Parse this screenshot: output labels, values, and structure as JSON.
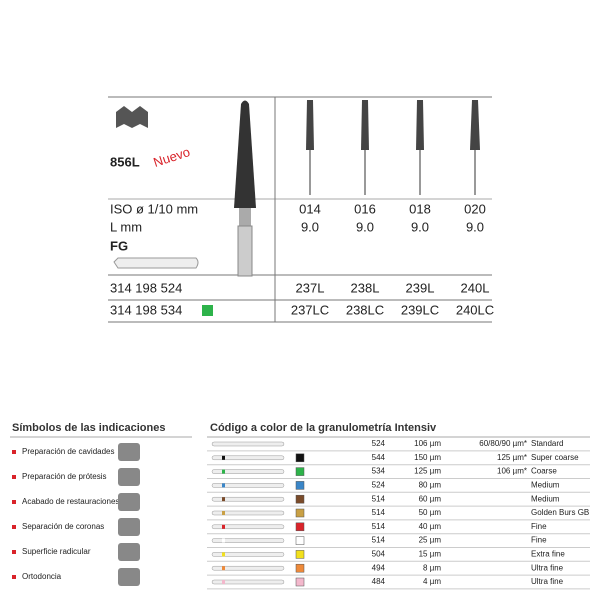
{
  "product": {
    "model": "856L",
    "badge": "Nuevo",
    "iso_label": "ISO ø 1/10 mm",
    "iso": [
      "014",
      "016",
      "018",
      "020"
    ],
    "length_label": "L mm",
    "length": [
      "9.0",
      "9.0",
      "9.0",
      "9.0"
    ],
    "shank": "FG",
    "articles": [
      {
        "number": "314 198 524",
        "refs": [
          "237L",
          "238L",
          "239L",
          "240L"
        ]
      },
      {
        "number": "314 198 534",
        "color": "#2db34a",
        "refs": [
          "237LC",
          "238LC",
          "239LC",
          "240LC"
        ]
      }
    ]
  },
  "indications": {
    "title": "Símbolos de las indicaciones",
    "items": [
      "Preparación de cavidades",
      "Preparación de prótesis",
      "Acabado de restauraciones",
      "Separación de coronas",
      "Superficie radicular",
      "Ortodoncia"
    ]
  },
  "grit_table": {
    "title": "Código a color de la granulometría Intensiv",
    "rows": [
      {
        "code": "524",
        "size": "106 µm",
        "grit": "60/80/90 µm*",
        "name": "Standard"
      },
      {
        "code": "544",
        "size": "150 µm",
        "grit": "125 µm*",
        "name": "Super coarse",
        "color": "#111111"
      },
      {
        "code": "534",
        "size": "125 µm",
        "grit": "106 µm*",
        "name": "Coarse",
        "color": "#2db34a"
      },
      {
        "code": "524",
        "size": "80 µm",
        "name": "Medium",
        "color": "#3a86c8"
      },
      {
        "code": "514",
        "size": "60 µm",
        "name": "Medium",
        "color": "#7a4b2a"
      },
      {
        "code": "514",
        "size": "50 µm",
        "name": "Golden Burs GB",
        "color": "#c9a045"
      },
      {
        "code": "514",
        "size": "40 µm",
        "name": "Fine",
        "color": "#d9232a"
      },
      {
        "code": "514",
        "size": "25 µm",
        "name": "Fine",
        "color": "#ffffff"
      },
      {
        "code": "504",
        "size": "15 µm",
        "name": "Extra fine",
        "color": "#f2e01c"
      },
      {
        "code": "494",
        "size": "8 µm",
        "name": "Ultra fine",
        "color": "#ee8a3a"
      },
      {
        "code": "484",
        "size": "4 µm",
        "name": "Ultra fine",
        "color": "#f3b8cc"
      }
    ]
  }
}
